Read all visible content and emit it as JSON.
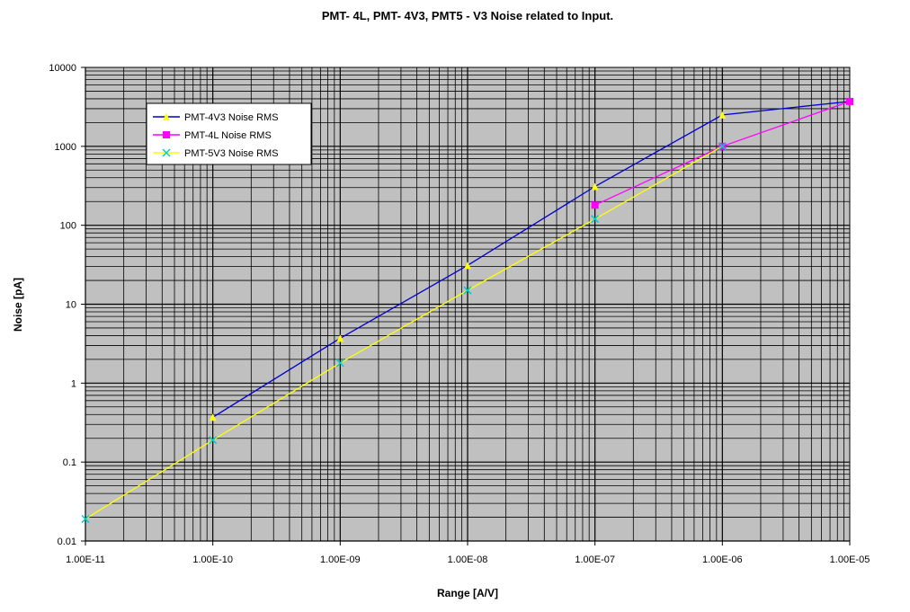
{
  "colors": {
    "background": "#ffffff",
    "plot_area": "#c0c0c0",
    "grid": "#000000"
  },
  "chart_data": {
    "type": "line",
    "title": "PMT- 4L, PMT- 4V3, PMT5 - V3 Noise related to Input.",
    "xlabel": "Range  [A/V]",
    "ylabel": "Noise [pA]",
    "xscale": "log",
    "yscale": "log",
    "xlim": [
      1e-11,
      1e-05
    ],
    "ylim": [
      0.01,
      10000
    ],
    "x_tick_labels": [
      "1.00E-11",
      "1.00E-10",
      "1.00E-09",
      "1.00E-08",
      "1.00E-07",
      "1.00E-06",
      "1.00E-05"
    ],
    "y_tick_labels": [
      "0.01",
      "0.1",
      "1",
      "10",
      "100",
      "1000",
      "10000"
    ],
    "grid": true,
    "legend_position": "top-left",
    "series": [
      {
        "name": "PMT-4V3 Noise RMS",
        "color": "#0000cc",
        "marker": "triangle",
        "marker_color": "#ffff00",
        "x": [
          1e-10,
          1e-09,
          1e-08,
          1e-07,
          1e-06,
          1e-05
        ],
        "y": [
          0.37,
          3.7,
          31,
          310,
          2500,
          3700
        ]
      },
      {
        "name": "PMT-4L Noise RMS",
        "color": "#ff00ff",
        "marker": "square",
        "marker_color": "#ff00ff",
        "x": [
          1e-07,
          1e-06,
          1e-05
        ],
        "y": [
          180,
          1000,
          3700
        ]
      },
      {
        "name": "PMT-5V3 Noise RMS",
        "color": "#ffff00",
        "marker": "x",
        "marker_color": "#00cccc",
        "x": [
          1e-11,
          1e-10,
          1e-09,
          1e-08,
          1e-07,
          1e-06
        ],
        "y": [
          0.019,
          0.19,
          1.8,
          15,
          120,
          1000
        ]
      }
    ]
  }
}
